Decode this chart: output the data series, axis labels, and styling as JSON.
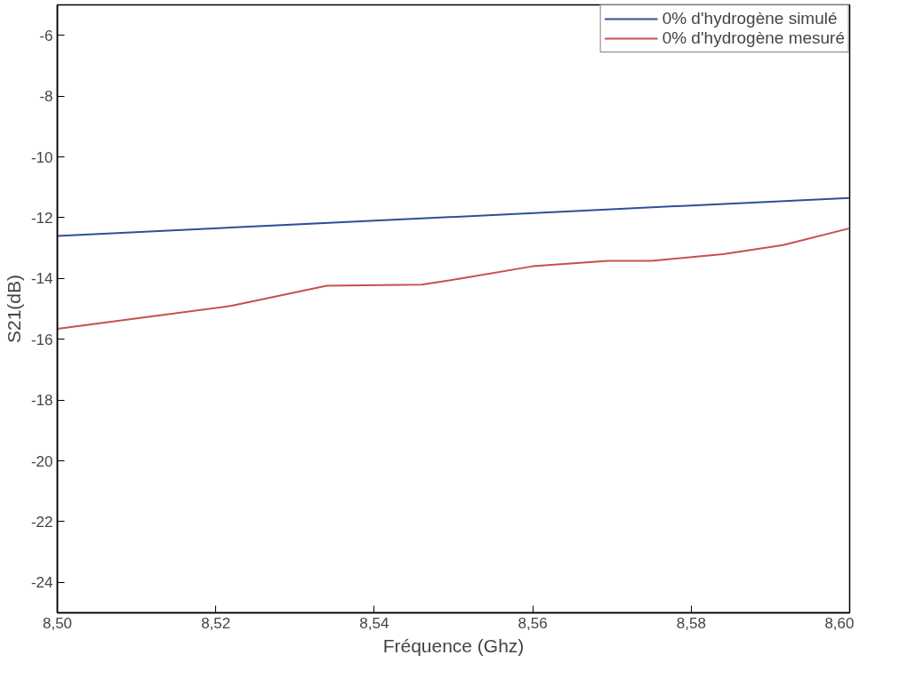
{
  "chart_data": {
    "type": "line",
    "xlabel": "Fréquence (Ghz)",
    "ylabel": "S21(dB)",
    "xlim": [
      8.5,
      8.6
    ],
    "ylim": [
      -25,
      -5
    ],
    "xticks": [
      {
        "value": 8.5,
        "label": "8,50"
      },
      {
        "value": 8.52,
        "label": "8,52"
      },
      {
        "value": 8.54,
        "label": "8,54"
      },
      {
        "value": 8.56,
        "label": "8,56"
      },
      {
        "value": 8.58,
        "label": "8,58"
      },
      {
        "value": 8.6,
        "label": "8,60"
      }
    ],
    "yticks": [
      -24,
      -22,
      -20,
      -18,
      -16,
      -14,
      -12,
      -10,
      -8,
      -6
    ],
    "legend": "top right",
    "grid": false,
    "marker": "none",
    "line_style": "solid",
    "series": [
      {
        "name": "0% d'hydrogène simulé",
        "color": "#2e4f9a",
        "x": [
          8.5,
          8.6
        ],
        "values": [
          -12.6,
          -11.35
        ]
      },
      {
        "name": "0% d'hydrogène mesuré",
        "color": "#c8504a",
        "x": [
          8.5,
          8.522,
          8.534,
          8.546,
          8.551,
          8.56,
          8.5695,
          8.575,
          8.584,
          8.5916,
          8.6
        ],
        "values": [
          -15.66,
          -14.9,
          -14.24,
          -14.2,
          -14.0,
          -13.6,
          -13.42,
          -13.42,
          -13.2,
          -12.9,
          -12.35
        ]
      }
    ]
  }
}
